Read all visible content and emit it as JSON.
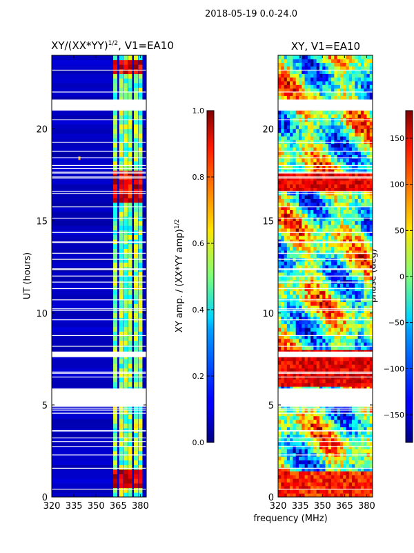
{
  "figure": {
    "suptitle": "2018-05-19 0.0-24.0",
    "shared_xlabel": "frequency (MHz)"
  },
  "chart_data": [
    {
      "type": "heatmap",
      "title": "XY/(XX*YY)",
      "title_exponent": "1/2",
      "title_suffix": ", V1=EA10",
      "xlabel": "",
      "ylabel": "UT (hours)",
      "xlim": [
        320,
        384
      ],
      "ylim": [
        0,
        24
      ],
      "x_ticks": [
        320,
        335,
        350,
        365,
        380
      ],
      "y_ticks": [
        0,
        5,
        10,
        15,
        20
      ],
      "colormap": "jet",
      "masked_bands_hours": [
        [
          21.0,
          21.6
        ],
        [
          7.6,
          7.9
        ],
        [
          4.9,
          5.9
        ]
      ],
      "bright_rfi_channels_mhz": [
        363,
        367,
        370,
        373,
        377,
        380
      ],
      "colorbar": {
        "label": "XY amp. / (XX*YY amp)",
        "label_exponent": "1/2",
        "range": [
          0.0,
          1.0
        ],
        "ticks": [
          "0.0",
          "0.2",
          "0.4",
          "0.6",
          "0.8",
          "1.0"
        ]
      }
    },
    {
      "type": "heatmap",
      "title": "XY, V1=EA10",
      "xlabel": "frequency (MHz)",
      "ylabel": "",
      "xlim": [
        320,
        384
      ],
      "ylim": [
        0,
        24
      ],
      "x_ticks": [
        320,
        335,
        350,
        365,
        380
      ],
      "y_ticks": [
        0,
        5,
        10,
        15,
        20
      ],
      "colormap": "jet",
      "masked_bands_hours": [
        [
          21.0,
          21.6
        ],
        [
          7.6,
          7.9
        ],
        [
          4.9,
          5.9
        ]
      ],
      "colorbar": {
        "label": "phase (deg)",
        "range": [
          -180,
          180
        ],
        "ticks": [
          "150",
          "100",
          "50",
          "0",
          "−50",
          "−100",
          "−150"
        ]
      }
    }
  ]
}
